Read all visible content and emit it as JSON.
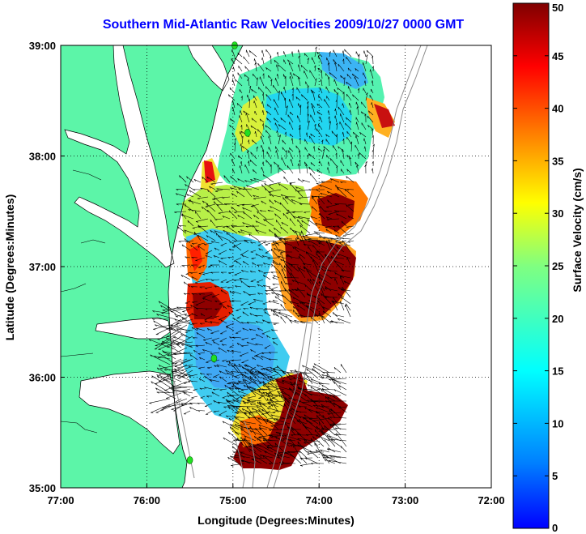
{
  "map": {
    "title": "Southern Mid-Atlantic Raw Velocities 2009/10/27 0000 GMT",
    "x_label": "Longitude (Degrees:Minutes)",
    "y_label": "Latitude (Degrees:Minutes)",
    "lon_range": [
      -77,
      -72
    ],
    "lat_range": [
      35,
      39
    ],
    "lon_ticks": [
      {
        "value": -77,
        "label": "77:00"
      },
      {
        "value": -76,
        "label": "76:00"
      },
      {
        "value": -75,
        "label": "75:00"
      },
      {
        "value": -74,
        "label": "74:00"
      },
      {
        "value": -73,
        "label": "73:00"
      },
      {
        "value": -72,
        "label": "72:00"
      }
    ],
    "lat_ticks": [
      {
        "value": 39,
        "label": "39:00"
      },
      {
        "value": 38,
        "label": "38:00"
      },
      {
        "value": 37,
        "label": "37:00"
      },
      {
        "value": 36,
        "label": "36:00"
      },
      {
        "value": 35,
        "label": "35:00"
      }
    ],
    "grid": "dotted",
    "land_color": "#5cf5a8",
    "coastline_color": "#000000",
    "bathymetry_color": "#8c8c8c",
    "vector_color": "#000000",
    "station_color": "#22e022",
    "stations": [
      {
        "lon": -74.98,
        "lat": 39.0
      },
      {
        "lon": -74.83,
        "lat": 38.21
      },
      {
        "lon": -75.22,
        "lat": 36.17
      },
      {
        "lon": -75.5,
        "lat": 35.25
      }
    ]
  },
  "colorbar": {
    "label": "Surface Velocity (cm/s)",
    "min": 0,
    "max": 50,
    "ticks": [
      "0",
      "5",
      "10",
      "15",
      "20",
      "25",
      "30",
      "35",
      "40",
      "45",
      "50"
    ],
    "colormap": "jet"
  }
}
